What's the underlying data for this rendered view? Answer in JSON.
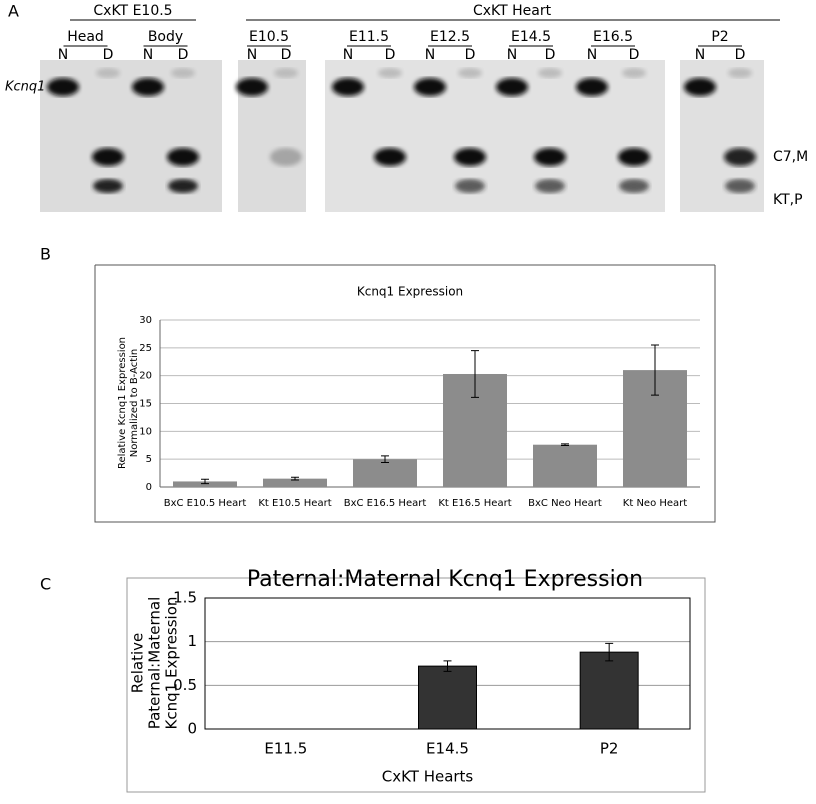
{
  "gel": {
    "panel_label": "A",
    "headers": [
      "CxKT E10.5",
      "CxKT Heart"
    ],
    "groups": [
      {
        "label": "Head",
        "lanes": [
          "N",
          "D"
        ]
      },
      {
        "label": "Body",
        "lanes": [
          "N",
          "D"
        ]
      },
      {
        "label": "E10.5",
        "lanes": [
          "N",
          "D"
        ]
      },
      {
        "label": "E11.5",
        "lanes": [
          "N",
          "D"
        ]
      },
      {
        "label": "E12.5",
        "lanes": [
          "N",
          "D"
        ]
      },
      {
        "label": "E14.5",
        "lanes": [
          "N",
          "D"
        ]
      },
      {
        "label": "E16.5",
        "lanes": [
          "N",
          "D"
        ]
      },
      {
        "label": "P2",
        "lanes": [
          "N",
          "D"
        ]
      }
    ],
    "gene_label": "Kcnq1",
    "band_labels": [
      "C7,M",
      "KT,P"
    ]
  },
  "chart_data": [
    {
      "type": "bar",
      "panel_label": "B",
      "title": "Kcnq1 Expression",
      "ylabel": [
        "Relative Kcnq1 Expression",
        "Normalized to B-Actin"
      ],
      "categories": [
        "BxC E10.5 Heart",
        "Kt E10.5 Heart",
        "BxC E16.5 Heart",
        "Kt E16.5 Heart",
        "BxC Neo Heart",
        "Kt Neo Heart"
      ],
      "values": [
        1.0,
        1.5,
        5.0,
        20.3,
        7.6,
        21.0
      ],
      "errors": [
        0.4,
        0.25,
        0.6,
        4.2,
        0.15,
        4.5
      ],
      "color": "#8c8c8c",
      "ylim": [
        0,
        30
      ],
      "yticks": [
        0,
        5,
        10,
        15,
        20,
        25,
        30
      ],
      "grid": true
    },
    {
      "type": "bar",
      "panel_label": "C",
      "title": "Paternal:Maternal Kcnq1 Expression",
      "ylabel": [
        "Relative",
        "Paternal:Maternal",
        "Kcnq1 Expression"
      ],
      "xlabel": "CxKT Hearts",
      "categories": [
        "E11.5",
        "E14.5",
        "P2"
      ],
      "values": [
        0,
        0.72,
        0.88
      ],
      "errors": [
        null,
        0.06,
        0.1
      ],
      "color": "#333333",
      "ylim": [
        0,
        1.5
      ],
      "yticks": [
        0,
        0.5,
        1,
        1.5
      ],
      "grid": true
    }
  ]
}
